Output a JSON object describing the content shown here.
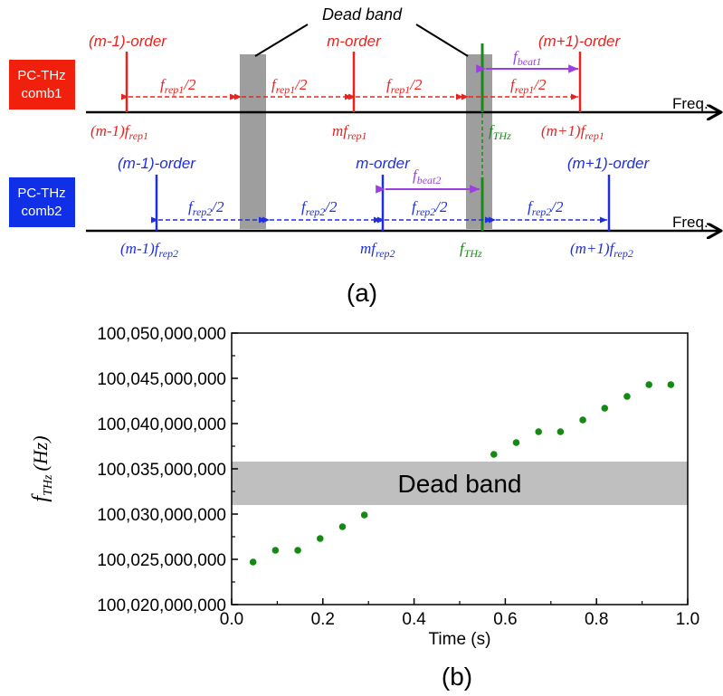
{
  "panel_a": {
    "label": "(a)",
    "dead_band_label": "Dead band",
    "freq_label": "Freq.",
    "comb1": {
      "label_line1": "PC-THz",
      "label_line2": "comb1",
      "color": "#e8231f",
      "order_left": "(m-1)-order",
      "order_mid": "m-order",
      "order_right": "(m+1)-order",
      "spacing": {
        "base": "f",
        "sub": "rep1",
        "tail": "/2"
      },
      "tick_left": {
        "pre": "(m-1)f",
        "sub": "rep1"
      },
      "tick_mid": {
        "pre": "mf",
        "sub": "rep1"
      },
      "tick_right": {
        "pre": "(m+1)f",
        "sub": "rep1"
      },
      "beat": {
        "base": "f",
        "sub": "beat1"
      }
    },
    "comb2": {
      "label_line1": "PC-THz",
      "label_line2": "comb2",
      "color": "#1f2fe0",
      "order_left": "(m-1)-order",
      "order_mid": "m-order",
      "order_right": "(m+1)-order",
      "spacing": {
        "base": "f",
        "sub": "rep2",
        "tail": "/2"
      },
      "tick_left": {
        "pre": "(m-1)f",
        "sub": "rep2"
      },
      "tick_mid": {
        "pre": "mf",
        "sub": "rep2"
      },
      "tick_right": {
        "pre": "(m+1)f",
        "sub": "rep2"
      },
      "beat": {
        "base": "f",
        "sub": "beat2"
      }
    },
    "thz": {
      "base": "f",
      "sub": "THz",
      "color": "#1a8a1a"
    },
    "beat_color": "#9b3fe0",
    "dead_band_color": "#9e9e9e"
  },
  "chart_data": {
    "type": "scatter",
    "panel_label": "(b)",
    "xlabel": "Time (s)",
    "ylabel": {
      "base": "f",
      "sub": "THz",
      "unit": "(Hz)"
    },
    "xlim": [
      0.0,
      1.0
    ],
    "ylim": [
      100020000000,
      100050000000
    ],
    "x_ticks": [
      "0.0",
      "0.2",
      "0.4",
      "0.6",
      "0.8",
      "1.0"
    ],
    "y_ticks": [
      "100,020,000,000",
      "100,025,000,000",
      "100,030,000,000",
      "100,035,000,000",
      "100,040,000,000",
      "100,045,000,000",
      "100,050,000,000"
    ],
    "dead_band": {
      "label": "Dead band",
      "y_range": [
        100031000000,
        100035800000
      ]
    },
    "point_color": "#138a13",
    "x": [
      0.047,
      0.096,
      0.145,
      0.194,
      0.243,
      0.291,
      0.575,
      0.624,
      0.673,
      0.721,
      0.77,
      0.818,
      0.867,
      0.915,
      0.963
    ],
    "y": [
      100024700000,
      100026000000,
      100026000000,
      100027300000,
      100028600000,
      100029900000,
      100036600000,
      100037900000,
      100039100000,
      100039100000,
      100040400000,
      100041700000,
      100043000000,
      100044300000,
      100044300000
    ]
  }
}
